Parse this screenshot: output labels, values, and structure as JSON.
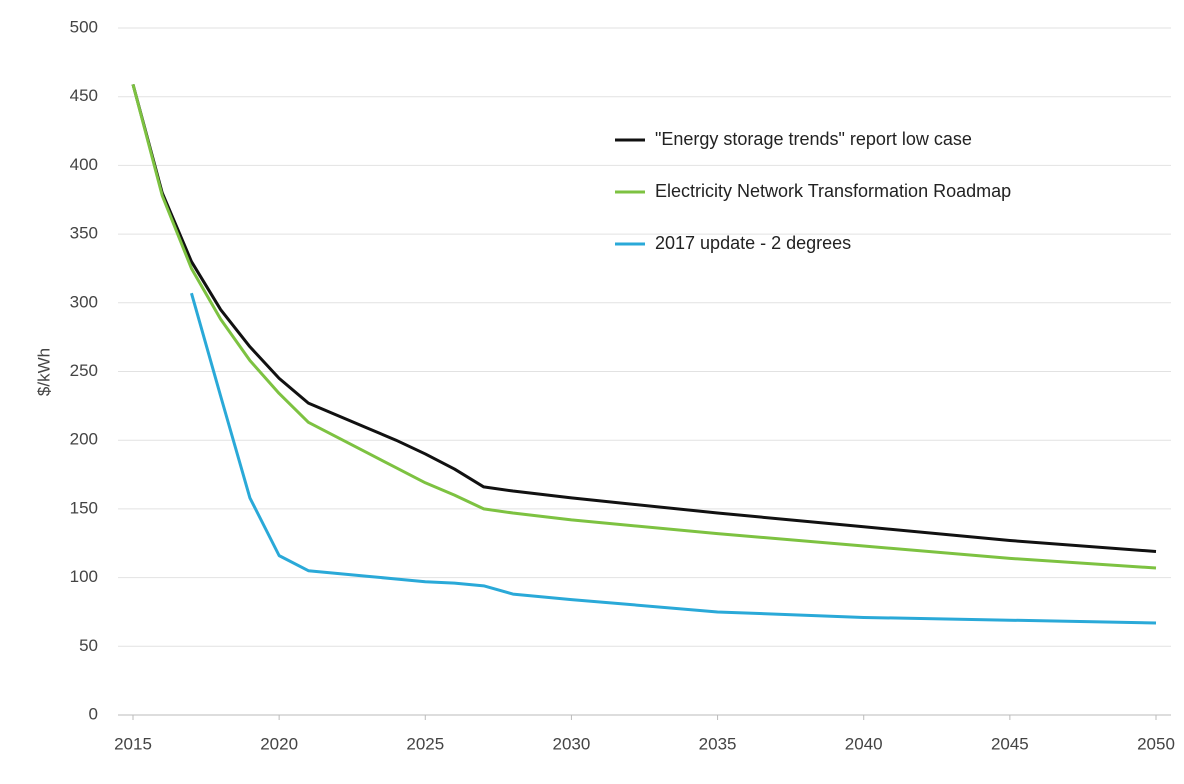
{
  "chart_data": {
    "type": "line",
    "y_label": "$/kWh",
    "x": [
      2015,
      2016,
      2017,
      2018,
      2019,
      2020,
      2021,
      2022,
      2023,
      2024,
      2025,
      2026,
      2027,
      2028,
      2030,
      2035,
      2040,
      2045,
      2050
    ],
    "series": [
      {
        "name": "\"Energy storage trends\" report low case",
        "color": "#111111",
        "values": [
          459,
          380,
          330,
          295,
          268,
          245,
          227,
          218,
          209,
          200,
          190,
          179,
          166,
          163,
          158,
          147,
          137,
          127,
          119
        ]
      },
      {
        "name": "Electricity Network Transformation Roadmap",
        "color": "#7dc241",
        "values": [
          459,
          378,
          325,
          288,
          258,
          234,
          213,
          202,
          191,
          180,
          169,
          160,
          150,
          147,
          142,
          132,
          123,
          114,
          107
        ]
      },
      {
        "name": "2017 update - 2 degrees",
        "color": "#2aa9d8",
        "values": [
          null,
          null,
          307,
          232,
          158,
          116,
          105,
          103,
          101,
          99,
          97,
          96,
          94,
          88,
          84,
          75,
          71,
          69,
          67
        ]
      }
    ],
    "xlim": [
      2015,
      2050
    ],
    "xticks": [
      2015,
      2020,
      2025,
      2030,
      2035,
      2040,
      2045,
      2050
    ],
    "ylim": [
      0,
      500
    ],
    "yticks": [
      0,
      50,
      100,
      150,
      200,
      250,
      300,
      350,
      400,
      450,
      500
    ],
    "grid": true,
    "legend": "upper right"
  }
}
